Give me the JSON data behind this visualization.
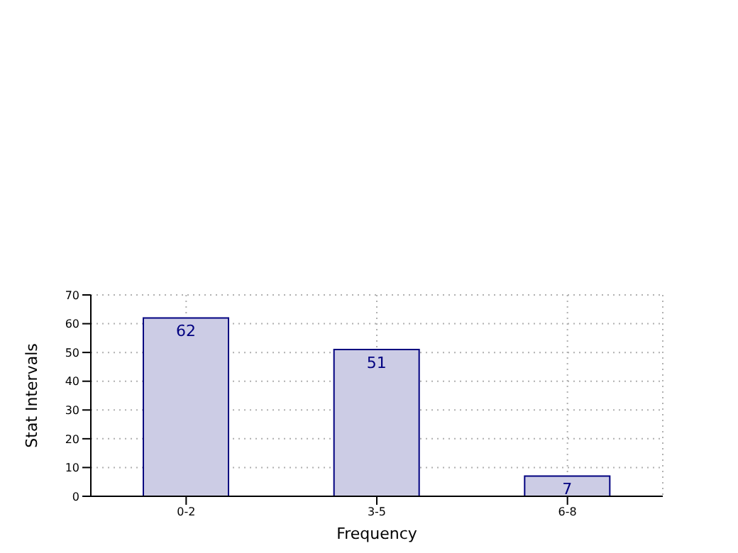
{
  "chart_data": {
    "type": "bar",
    "xlabel": "Frequency",
    "ylabel": "Stat Intervals",
    "categories": [
      "0-2",
      "3-5",
      "6-8"
    ],
    "values": [
      62,
      51,
      7
    ],
    "color": "#cccce5",
    "ylim": [
      0,
      70
    ],
    "yticks": [
      0,
      10,
      20,
      30,
      40,
      50,
      60,
      70
    ],
    "grid": true,
    "data_labels": true
  }
}
